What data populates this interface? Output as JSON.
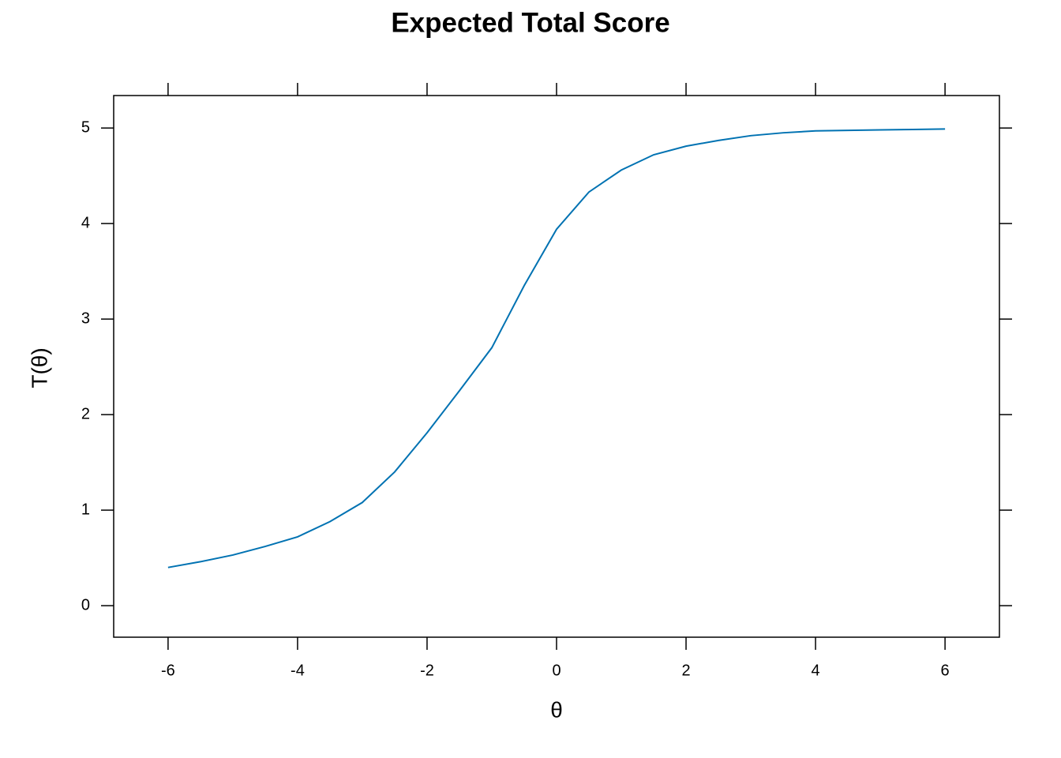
{
  "chart_data": {
    "type": "line",
    "title": "Expected Total Score",
    "x_label": "θ",
    "y_label": "T(θ)",
    "x": [
      -6,
      -5.5,
      -5,
      -4.5,
      -4,
      -3.5,
      -3,
      -2.5,
      -2,
      -1.5,
      -1,
      -0.5,
      0,
      0.5,
      1,
      1.5,
      2,
      2.5,
      3,
      3.5,
      4,
      4.5,
      5,
      5.5,
      6
    ],
    "series": [
      {
        "name": "T(θ)",
        "color": "#0072b2",
        "values": [
          0.4,
          0.46,
          0.53,
          0.62,
          0.72,
          0.88,
          1.08,
          1.4,
          1.81,
          2.25,
          2.7,
          3.35,
          3.94,
          4.33,
          4.56,
          4.72,
          4.81,
          4.87,
          4.92,
          4.95,
          4.97,
          4.975,
          4.98,
          4.985,
          4.99
        ]
      }
    ],
    "xlim": [
      -6.84,
      6.84
    ],
    "xticks": [
      -6,
      -4,
      -2,
      0,
      2,
      4,
      6
    ],
    "ylim": [
      -0.33,
      5.34
    ],
    "yticks": [
      0,
      1,
      2,
      3,
      4,
      5
    ]
  }
}
